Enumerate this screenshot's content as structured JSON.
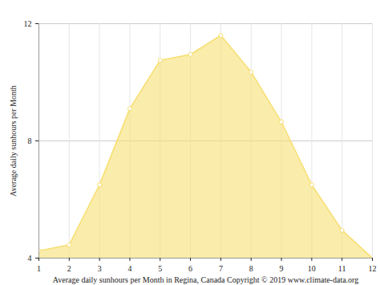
{
  "chart_data": {
    "type": "area",
    "x": [
      1,
      2,
      3,
      4,
      5,
      6,
      7,
      8,
      9,
      10,
      11,
      12
    ],
    "values": [
      4.25,
      4.45,
      6.5,
      9.1,
      10.75,
      10.95,
      11.6,
      10.35,
      8.65,
      6.5,
      4.95,
      4.0
    ],
    "x_label": "Average daily sunhours per Month in Regina, Canada Copyright © 2019 www.climate-data.org",
    "y_label": "Average daily sunhours per Month",
    "color": "#f7df72",
    "xlim": [
      1,
      12
    ],
    "xticks": [
      1,
      2,
      3,
      4,
      5,
      6,
      7,
      8,
      9,
      10,
      11,
      12
    ],
    "ylim": [
      4,
      12
    ],
    "yticks": [
      4,
      8,
      12
    ],
    "grid": true,
    "marker": "circle"
  }
}
